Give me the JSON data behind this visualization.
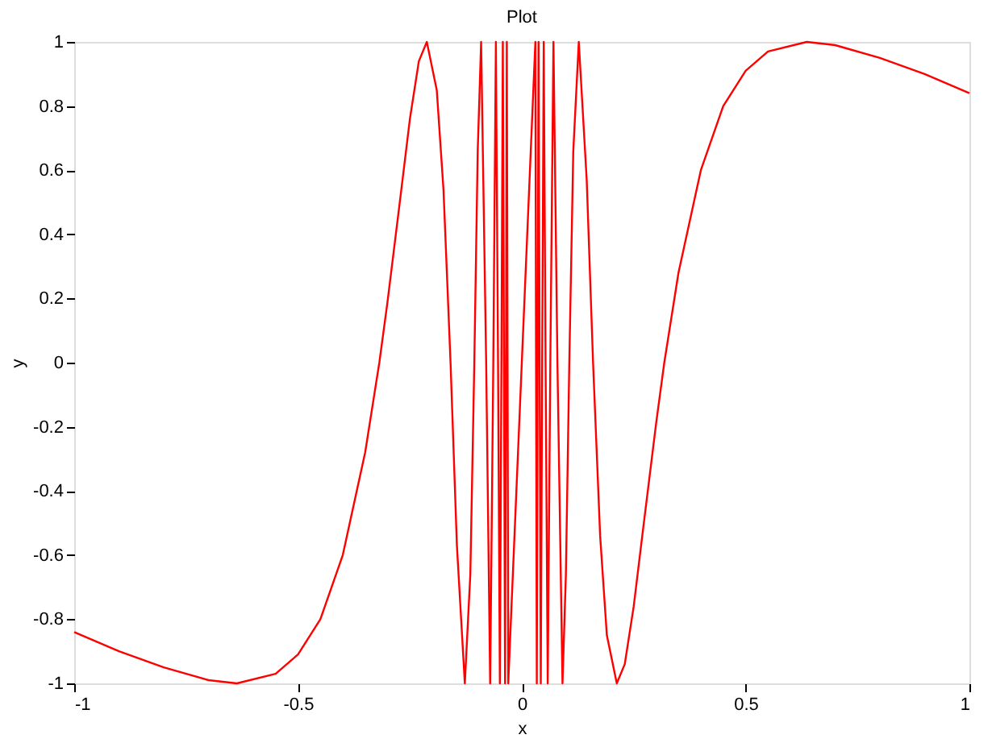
{
  "chart_data": {
    "type": "line",
    "title": "Plot",
    "xlabel": "x",
    "ylabel": "y",
    "x": [
      -1,
      -0.9,
      -0.8,
      -0.7,
      -0.6366,
      -0.55,
      -0.5,
      -0.45,
      -0.4,
      -0.35,
      -0.3183,
      -0.3,
      -0.27,
      -0.25,
      -0.23,
      -0.2122,
      -0.19,
      -0.175,
      -0.1592,
      -0.145,
      -0.1273,
      -0.115,
      -0.1061,
      -0.0985,
      -0.0909,
      -0.0796,
      -0.0707,
      -0.0637,
      -0.0579,
      -0.0531,
      -0.049,
      -0.0455,
      -0.0424,
      -0.0398,
      -0.0374,
      -0.0354,
      -0.0335,
      -0.0318,
      -0.0303,
      0.0303,
      0.0318,
      0.0335,
      0.0354,
      0.0374,
      0.0398,
      0.0424,
      0.0455,
      0.049,
      0.0531,
      0.0579,
      0.0637,
      0.0707,
      0.0796,
      0.0909,
      0.0985,
      0.1061,
      0.115,
      0.1273,
      0.145,
      0.1592,
      0.175,
      0.19,
      0.2122,
      0.23,
      0.25,
      0.27,
      0.3,
      0.3183,
      0.35,
      0.4,
      0.45,
      0.5,
      0.55,
      0.6366,
      0.7,
      0.8,
      0.9,
      1
    ],
    "series": [
      {
        "color": "#ff0000",
        "values": [
          -0.84,
          -0.9,
          -0.95,
          -0.99,
          -1,
          -0.97,
          -0.91,
          -0.8,
          -0.6,
          -0.28,
          0,
          0.19,
          0.53,
          0.76,
          0.94,
          1,
          0.85,
          0.54,
          0,
          -0.57,
          -1,
          -0.66,
          0,
          0.66,
          1,
          0,
          -1,
          0,
          1,
          0,
          -1,
          0,
          1,
          0,
          -1,
          0,
          1,
          0,
          -1,
          1,
          0,
          -1,
          0,
          1,
          0,
          -1,
          0,
          1,
          0,
          -1,
          0,
          1,
          0,
          -1,
          -0.66,
          0,
          0.66,
          1,
          0.57,
          0,
          -0.54,
          -0.85,
          -1,
          -0.94,
          -0.76,
          -0.53,
          -0.19,
          0,
          0.28,
          0.6,
          0.8,
          0.91,
          0.97,
          1,
          0.99,
          0.95,
          0.9,
          0.84
        ]
      }
    ],
    "xlim": [
      -1,
      1
    ],
    "xticks": [
      -1,
      -0.5,
      0,
      0.5,
      1
    ],
    "ylim": [
      -1,
      1
    ],
    "yticks": [
      -1,
      -0.8,
      -0.6,
      -0.4,
      -0.2,
      0,
      0.2,
      0.4,
      0.6,
      0.8,
      1
    ],
    "grid": false,
    "marker": "none",
    "line_style": "solid"
  }
}
